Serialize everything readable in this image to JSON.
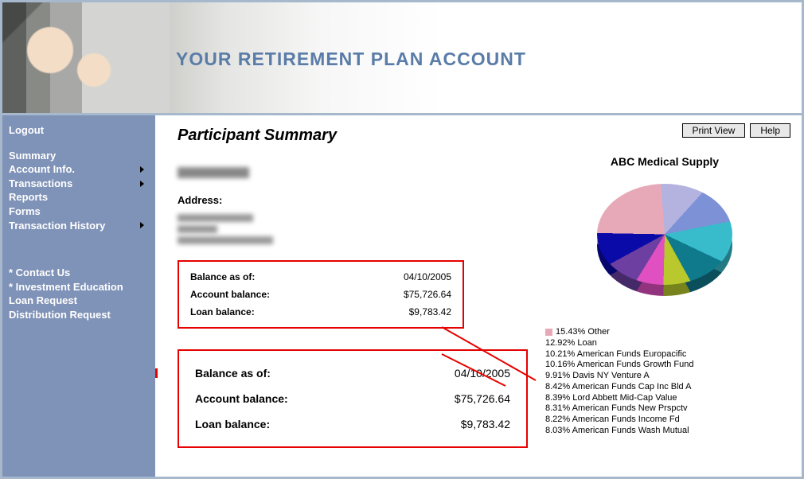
{
  "banner": {
    "title": "YOUR RETIREMENT PLAN ACCOUNT",
    "title_color": "#5a7ca8"
  },
  "sidebar": {
    "bg_color": "#7f92b7",
    "items": [
      {
        "label": "Logout",
        "arrow": false
      },
      {
        "label": "Summary",
        "arrow": false
      },
      {
        "label": "Account Info.",
        "arrow": true
      },
      {
        "label": "Transactions",
        "arrow": true
      },
      {
        "label": "Reports",
        "arrow": false
      },
      {
        "label": "Forms",
        "arrow": false
      },
      {
        "label": "Transaction History",
        "arrow": true
      },
      {
        "label": "* Contact Us",
        "arrow": false
      },
      {
        "label": "* Investment Education",
        "arrow": false
      },
      {
        "label": "Loan Request",
        "arrow": false
      },
      {
        "label": "Distribution Request",
        "arrow": false
      }
    ]
  },
  "page": {
    "title": "Participant Summary",
    "buttons": {
      "print": "Print View",
      "help": "Help"
    },
    "address_label": "Address:"
  },
  "balance": {
    "as_of_label": "Balance as of:",
    "as_of_value": "04/10/2005",
    "account_label": "Account balance:",
    "account_value": "$75,726.64",
    "loan_label": "Loan balance:",
    "loan_value": "$9,783.42",
    "box_border_color": "#e60000"
  },
  "chart": {
    "title": "ABC Medical Supply",
    "type": "pie",
    "background_color": "#ffffff",
    "slices": [
      {
        "percent": 15.43,
        "label": "Other",
        "color": "#e7a9b8"
      },
      {
        "percent": 12.92,
        "label": "Loan",
        "color": "#b4b3e0"
      },
      {
        "percent": 10.21,
        "label": "American Funds Europacific",
        "color": "#7c91d6"
      },
      {
        "percent": 10.16,
        "label": "American Funds Growth Fund",
        "color": "#38bccb"
      },
      {
        "percent": 9.91,
        "label": "Davis NY Venture A",
        "color": "#0f7a8c"
      },
      {
        "percent": 8.42,
        "label": "American Funds Cap Inc Bld A",
        "color": "#b9c92d"
      },
      {
        "percent": 8.39,
        "label": "Lord Abbett Mid-Cap Value",
        "color": "#e050c0"
      },
      {
        "percent": 8.31,
        "label": "American Funds New Prspctv",
        "color": "#6c3fa0"
      },
      {
        "percent": 8.22,
        "label": "American Funds Income Fd",
        "color": "#0a0aa8"
      },
      {
        "percent": 8.03,
        "label": "American Funds Wash Mutual",
        "color": "#e7a9b8"
      }
    ]
  }
}
